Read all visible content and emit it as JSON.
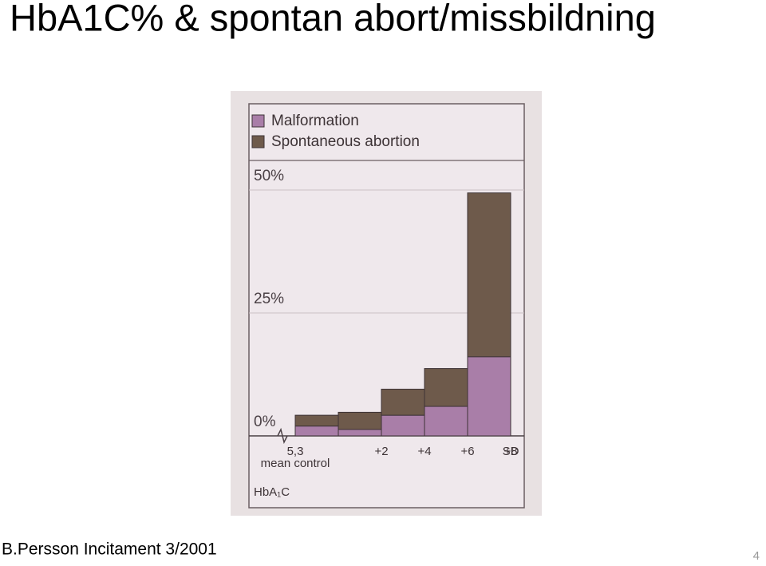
{
  "slide": {
    "title": "HbA1C% & spontan abort/missbildning",
    "footer": "B.Persson  Incitament 3/2001",
    "page_number": "4"
  },
  "chart_data": {
    "type": "stacked-bar",
    "categories": [
      "5,3",
      "+2",
      "+4",
      "+6",
      "+8"
    ],
    "category_note": "mean control",
    "x_unit": "SD",
    "xlabel": "HbA₁C",
    "series": [
      {
        "name": "Malformation",
        "color": "#a97ea8",
        "values": [
          2,
          1.3,
          4.2,
          6,
          16.1
        ]
      },
      {
        "name": "Spontaneous abortion",
        "color": "#6e5a4b",
        "values": [
          2.2,
          3.5,
          5.3,
          7.7,
          33.3
        ]
      }
    ],
    "ylim": [
      0,
      56
    ],
    "yticks": [
      {
        "value": 0,
        "label": "0%"
      },
      {
        "value": 25,
        "label": "25%"
      },
      {
        "value": 50,
        "label": "50%"
      }
    ],
    "grid": true
  }
}
